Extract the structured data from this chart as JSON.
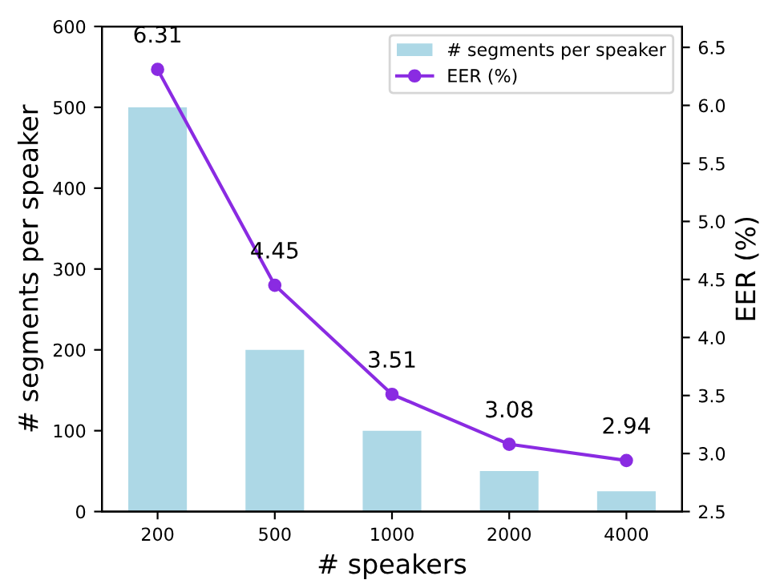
{
  "chart_data": {
    "type": "bar",
    "xlabel": "# speakers",
    "ylabel": "# segments per speaker",
    "y2label": "EER (%)",
    "categories": [
      "200",
      "500",
      "1000",
      "2000",
      "4000"
    ],
    "series": [
      {
        "name": "# segments per speaker",
        "color": "#add8e6",
        "values": [
          500,
          200,
          100,
          50,
          25
        ]
      },
      {
        "name": "EER (%)",
        "type": "line",
        "axis": "y2",
        "color": "#8a2be2",
        "marker": "circle",
        "values": [
          6.31,
          4.45,
          3.51,
          3.08,
          2.94
        ],
        "value_labels": [
          "6.31",
          "4.45",
          "3.51",
          "3.08",
          "2.94"
        ]
      }
    ],
    "ylim": [
      0,
      600
    ],
    "yticks": [
      0,
      100,
      200,
      300,
      400,
      500,
      600
    ],
    "y2lim": [
      2.5,
      6.68
    ],
    "y2ticks": [
      2.5,
      {
        "value": 3,
        "label": "3.0"
      },
      3.5,
      {
        "value": 4,
        "label": "4.0"
      },
      4.5,
      {
        "value": 5,
        "label": "5.0"
      },
      5.5,
      {
        "value": 6,
        "label": "6.0"
      },
      6.5
    ],
    "legend": "top right",
    "grid": false
  }
}
